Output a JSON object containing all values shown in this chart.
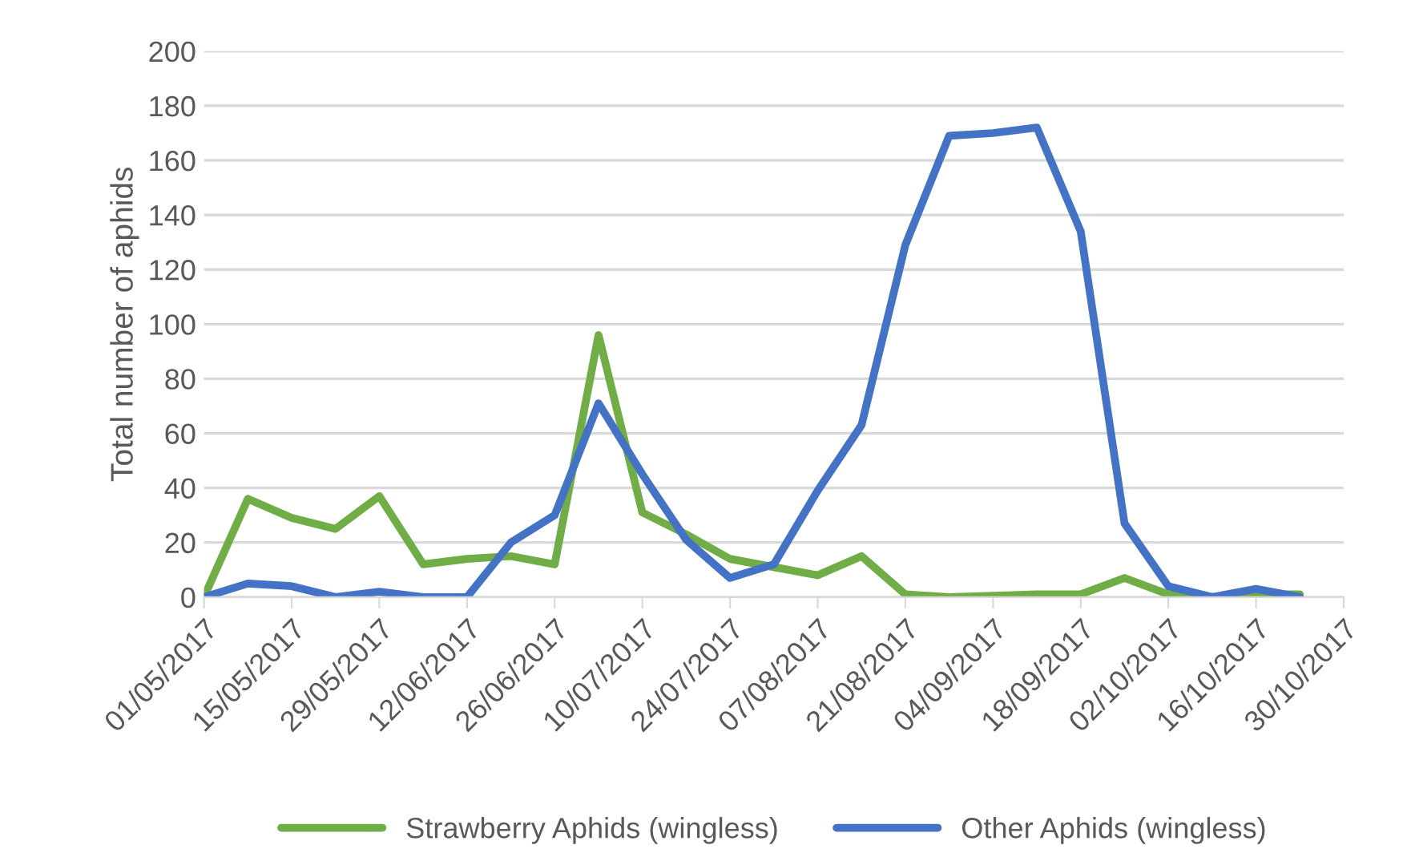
{
  "chart_data": {
    "type": "line",
    "ylabel": "Total number of aphids",
    "x": [
      "2017-05-01",
      "2017-05-08",
      "2017-05-15",
      "2017-05-22",
      "2017-05-29",
      "2017-06-05",
      "2017-06-12",
      "2017-06-19",
      "2017-06-26",
      "2017-07-03",
      "2017-07-10",
      "2017-07-17",
      "2017-07-24",
      "2017-07-31",
      "2017-08-07",
      "2017-08-14",
      "2017-08-21",
      "2017-08-28",
      "2017-09-04",
      "2017-09-11",
      "2017-09-18",
      "2017-09-25",
      "2017-10-02",
      "2017-10-09",
      "2017-10-16",
      "2017-10-23"
    ],
    "series": [
      {
        "name": "Strawberry Aphids (wingless)",
        "color": "#70ad47",
        "values": [
          0,
          36,
          29,
          25,
          37,
          12,
          14,
          15,
          12,
          96,
          31,
          23,
          14,
          11,
          8,
          15,
          1,
          0,
          0.5,
          1,
          1,
          7,
          1,
          0,
          1,
          1
        ]
      },
      {
        "name": "Other Aphids (wingless)",
        "color": "#4472c4",
        "values": [
          0,
          5,
          4,
          0,
          2,
          0,
          0,
          20,
          30,
          71,
          45,
          21,
          7,
          12,
          39,
          63,
          129,
          169,
          170,
          172,
          134,
          27,
          4,
          0,
          3,
          0
        ]
      }
    ],
    "xlim": [
      "2017-05-01",
      "2017-10-30"
    ],
    "xticks": [
      {
        "value": "2017-05-01",
        "label": "01/05/2017"
      },
      {
        "value": "2017-05-15",
        "label": "15/05/2017"
      },
      {
        "value": "2017-05-29",
        "label": "29/05/2017"
      },
      {
        "value": "2017-06-12",
        "label": "12/06/2017"
      },
      {
        "value": "2017-06-26",
        "label": "26/06/2017"
      },
      {
        "value": "2017-07-10",
        "label": "10/07/2017"
      },
      {
        "value": "2017-07-24",
        "label": "24/07/2017"
      },
      {
        "value": "2017-08-07",
        "label": "07/08/2017"
      },
      {
        "value": "2017-08-21",
        "label": "21/08/2017"
      },
      {
        "value": "2017-09-04",
        "label": "04/09/2017"
      },
      {
        "value": "2017-09-18",
        "label": "18/09/2017"
      },
      {
        "value": "2017-10-02",
        "label": "02/10/2017"
      },
      {
        "value": "2017-10-16",
        "label": "16/10/2017"
      },
      {
        "value": "2017-10-30",
        "label": "30/10/2017"
      }
    ],
    "ylim": [
      0,
      200
    ],
    "yticks": [
      0,
      20,
      40,
      60,
      80,
      100,
      120,
      140,
      160,
      180,
      200
    ],
    "grid": "y",
    "legend": "bottom",
    "marker": "none",
    "line_style": "solid"
  }
}
